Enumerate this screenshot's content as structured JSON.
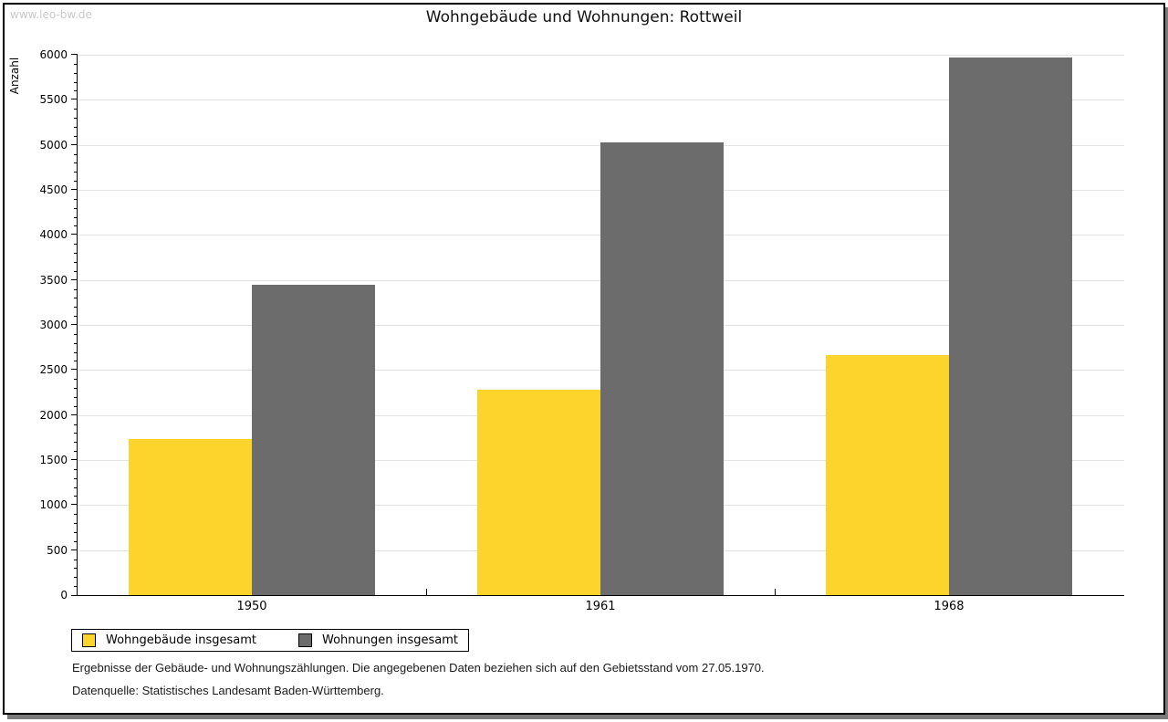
{
  "watermark": "www.leo-bw.de",
  "chart_data": {
    "type": "bar",
    "title": "Wohngebäude und Wohnungen: Rottweil",
    "ylabel": "Anzahl",
    "categories": [
      "1950",
      "1961",
      "1968"
    ],
    "series": [
      {
        "name": "Wohngebäude insgesamt",
        "color": "#fcd42b",
        "values": [
          1730,
          2280,
          2670
        ]
      },
      {
        "name": "Wohnungen insgesamt",
        "color": "#6c6c6c",
        "values": [
          3450,
          5030,
          5965
        ]
      }
    ],
    "ylim": [
      0,
      6000
    ],
    "ytick_step": 500,
    "y_minor_step": 100,
    "grid": true,
    "legend_position": "bottom-left"
  },
  "footer": {
    "note": "Ergebnisse der Gebäude- und Wohnungszählungen. Die angegebenen Daten beziehen sich auf den Gebietsstand vom 27.05.1970.",
    "source": "Datenquelle: Statistisches Landesamt Baden-Württemberg."
  }
}
